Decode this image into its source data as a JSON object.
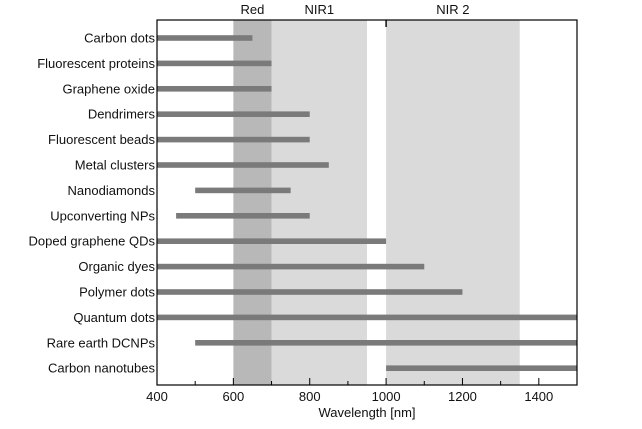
{
  "chart_data": {
    "type": "bar",
    "orientation": "horizontal-range",
    "title": "",
    "xlabel": "Wavelength [nm]",
    "ylabel": "",
    "xlim": [
      400,
      1500
    ],
    "xticks": [
      400,
      600,
      800,
      1000,
      1200,
      1400
    ],
    "grid": false,
    "legend": "none",
    "bar_color": "#7a7a7a",
    "regions": [
      {
        "label": "Red",
        "start": 600,
        "end": 700,
        "color": "#b8b8b8"
      },
      {
        "label": "NIR1",
        "start": 700,
        "end": 950,
        "color": "#dadada"
      },
      {
        "label": "NIR 2",
        "start": 1000,
        "end": 1350,
        "color": "#dadada"
      }
    ],
    "regions_label_note_divider_at": 1000,
    "categories": [
      "Carbon dots",
      "Fluorescent proteins",
      "Graphene oxide",
      "Dendrimers",
      "Fluorescent beads",
      "Metal clusters",
      "Nanodiamonds",
      "Upconverting NPs",
      "Doped graphene QDs",
      "Organic dyes",
      "Polymer dots",
      "Quantum dots",
      "Rare earth DCNPs",
      "Carbon nanotubes"
    ],
    "ranges": [
      [
        400,
        650
      ],
      [
        400,
        700
      ],
      [
        400,
        700
      ],
      [
        400,
        800
      ],
      [
        400,
        800
      ],
      [
        400,
        850
      ],
      [
        500,
        750
      ],
      [
        450,
        800
      ],
      [
        400,
        1000
      ],
      [
        400,
        1100
      ],
      [
        400,
        1200
      ],
      [
        400,
        1500
      ],
      [
        500,
        1500
      ],
      [
        1000,
        1500
      ]
    ]
  }
}
